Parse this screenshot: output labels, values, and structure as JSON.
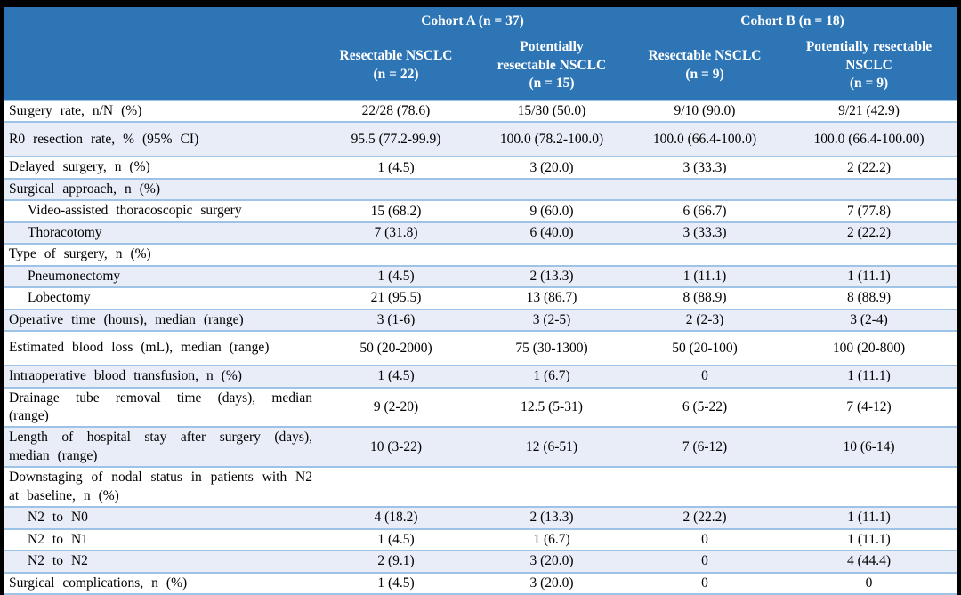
{
  "colors": {
    "frame": "#000000",
    "header_bg": "#2E75B6",
    "header_text": "#FFFFFF",
    "band": "#E9EDF7",
    "row_border": "#9DC3E6",
    "text": "#000000"
  },
  "table": {
    "cohorts": [
      {
        "label": "Cohort A (n = 37)"
      },
      {
        "label": "Cohort B (n = 18)"
      }
    ],
    "columns": [
      {
        "l1": "Resectable NSCLC",
        "l2": "(n = 22)",
        "l3": ""
      },
      {
        "l1": "Potentially",
        "l2": "resectable NSCLC",
        "l3": "(n = 15)"
      },
      {
        "l1": "Resectable NSCLC",
        "l2": "(n = 9)",
        "l3": ""
      },
      {
        "l1": "Potentially resectable",
        "l2": "NSCLC",
        "l3": "(n = 9)"
      }
    ],
    "rows": [
      {
        "label": "Surgery rate, n/N (%)",
        "values": [
          "22/28 (78.6)",
          "15/30 (50.0)",
          "9/10 (90.0)",
          "9/21 (42.9)"
        ],
        "shaded": false,
        "indent": false,
        "size": "normal"
      },
      {
        "label": "R0 resection rate, % (95% CI)",
        "values": [
          "95.5 (77.2-99.9)",
          "100.0 (78.2-100.0)",
          "100.0 (66.4-100.0)",
          "100.0 (66.4-100.00)"
        ],
        "shaded": true,
        "indent": false,
        "size": "tall"
      },
      {
        "label": "Delayed surgery, n (%)",
        "values": [
          "1 (4.5)",
          "3 (20.0)",
          "3 (33.3)",
          "2 (22.2)"
        ],
        "shaded": false,
        "indent": false,
        "size": "normal"
      },
      {
        "label": "Surgical approach, n (%)",
        "values": [
          "",
          "",
          "",
          ""
        ],
        "shaded": true,
        "indent": false,
        "size": "normal"
      },
      {
        "label": "Video-assisted thoracoscopic surgery",
        "values": [
          "15 (68.2)",
          "9 (60.0)",
          "6 (66.7)",
          "7 (77.8)"
        ],
        "shaded": false,
        "indent": true,
        "size": "normal"
      },
      {
        "label": "Thoracotomy",
        "values": [
          "7 (31.8)",
          "6 (40.0)",
          "3 (33.3)",
          "2 (22.2)"
        ],
        "shaded": true,
        "indent": true,
        "size": "normal"
      },
      {
        "label": "Type of surgery, n (%)",
        "values": [
          "",
          "",
          "",
          ""
        ],
        "shaded": false,
        "indent": false,
        "size": "normal"
      },
      {
        "label": "Pneumonectomy",
        "values": [
          "1 (4.5)",
          "2 (13.3)",
          "1 (11.1)",
          "1 (11.1)"
        ],
        "shaded": true,
        "indent": true,
        "size": "normal"
      },
      {
        "label": "Lobectomy",
        "values": [
          "21 (95.5)",
          "13 (86.7)",
          "8 (88.9)",
          "8 (88.9)"
        ],
        "shaded": false,
        "indent": true,
        "size": "normal"
      },
      {
        "label": "Operative time (hours), median (range)",
        "values": [
          "3 (1-6)",
          "3 (2-5)",
          "2 (2-3)",
          "3 (2-4)"
        ],
        "shaded": true,
        "indent": false,
        "size": "normal"
      },
      {
        "label": "Estimated blood loss (mL), median (range)",
        "values": [
          "50 (20-2000)",
          "75 (30-1300)",
          "50 (20-100)",
          "100 (20-800)"
        ],
        "shaded": false,
        "indent": false,
        "size": "tall"
      },
      {
        "label": "Intraoperative blood transfusion, n (%)",
        "values": [
          "1 (4.5)",
          "1 (6.7)",
          "0",
          "1 (11.1)"
        ],
        "shaded": true,
        "indent": false,
        "size": "normal"
      },
      {
        "label": "Drainage tube removal time (days), median (range)",
        "values": [
          "9 (2-20)",
          "12.5 (5-31)",
          "6 (5-22)",
          "7 (4-12)"
        ],
        "shaded": false,
        "indent": false,
        "size": "twoline"
      },
      {
        "label": "Length of hospital stay after surgery (days), median (range)",
        "values": [
          "10 (3-22)",
          "12 (6-51)",
          "7 (6-12)",
          "10 (6-14)"
        ],
        "shaded": true,
        "indent": false,
        "size": "twoline"
      },
      {
        "label": "Downstaging of nodal status in patients with N2 at baseline, n (%)",
        "values": [
          "",
          "",
          "",
          ""
        ],
        "shaded": false,
        "indent": false,
        "size": "twoline"
      },
      {
        "label": "N2 to N0",
        "values": [
          "4 (18.2)",
          "2 (13.3)",
          "2 (22.2)",
          "1 (11.1)"
        ],
        "shaded": true,
        "indent": true,
        "size": "normal"
      },
      {
        "label": "N2 to N1",
        "values": [
          "1 (4.5)",
          "1 (6.7)",
          "0",
          "1 (11.1)"
        ],
        "shaded": false,
        "indent": true,
        "size": "normal"
      },
      {
        "label": "N2 to N2",
        "values": [
          "2 (9.1)",
          "3 (20.0)",
          "0",
          "4 (44.4)"
        ],
        "shaded": true,
        "indent": true,
        "size": "normal"
      },
      {
        "label": "Surgical complications, n (%)",
        "values": [
          "1 (4.5)",
          "3 (20.0)",
          "0",
          "0"
        ],
        "shaded": false,
        "indent": false,
        "size": "normal"
      }
    ]
  }
}
